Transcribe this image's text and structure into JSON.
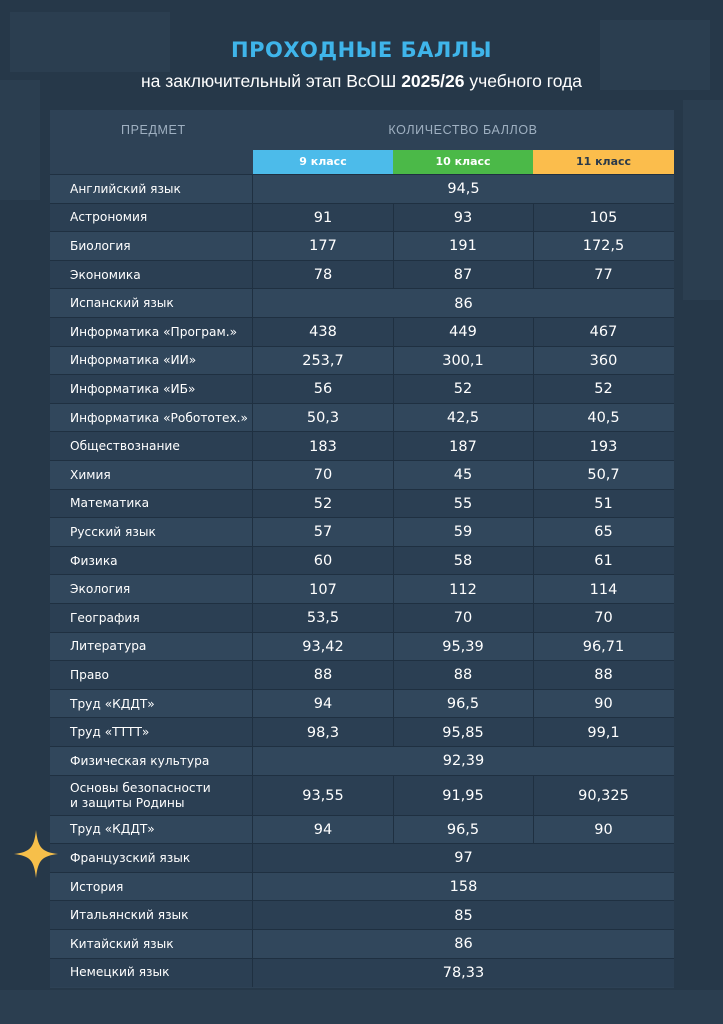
{
  "header": {
    "title": "ПРОХОДНЫЕ БАЛЛЫ",
    "subtitle_pre": "на заключительный этап ВсОШ ",
    "subtitle_bold": "2025/26",
    "subtitle_post": " учебного года"
  },
  "colors": {
    "background": "#263849",
    "title": "#3fb5ea",
    "grade_9": "#4cbbea",
    "grade_10": "#4bb948",
    "grade_11": "#fbbd4c",
    "star": "#f6bf4a"
  },
  "table": {
    "subject_header": "ПРЕДМЕТ",
    "score_header": "КОЛИЧЕСТВО БАЛЛОВ",
    "grades": [
      "9 класс",
      "10 класс",
      "11 класс"
    ],
    "rows": [
      {
        "subject": "Английский язык",
        "all": "94,5"
      },
      {
        "subject": "Астрономия",
        "scores": [
          "91",
          "93",
          "105"
        ]
      },
      {
        "subject": "Биология",
        "scores": [
          "177",
          "191",
          "172,5"
        ]
      },
      {
        "subject": "Экономика",
        "scores": [
          "78",
          "87",
          "77"
        ]
      },
      {
        "subject": "Испанский язык",
        "all": "86"
      },
      {
        "subject": "Информатика  «Програм.»",
        "scores": [
          "438",
          "449",
          "467"
        ]
      },
      {
        "subject": "Информатика «ИИ»",
        "scores": [
          "253,7",
          "300,1",
          "360"
        ]
      },
      {
        "subject": "Информатика «ИБ»",
        "scores": [
          "56",
          "52",
          "52"
        ]
      },
      {
        "subject": "Информатика «Робототех.»",
        "scores": [
          "50,3",
          "42,5",
          "40,5"
        ]
      },
      {
        "subject": "Обществознание",
        "scores": [
          "183",
          "187",
          "193"
        ]
      },
      {
        "subject": "Химия",
        "scores": [
          "70",
          "45",
          "50,7"
        ]
      },
      {
        "subject": "Математика",
        "scores": [
          "52",
          "55",
          "51"
        ]
      },
      {
        "subject": "Русский язык",
        "scores": [
          "57",
          "59",
          "65"
        ]
      },
      {
        "subject": "Физика",
        "scores": [
          "60",
          "58",
          "61"
        ]
      },
      {
        "subject": "Экология",
        "scores": [
          "107",
          "112",
          "114"
        ]
      },
      {
        "subject": "География",
        "scores": [
          "53,5",
          "70",
          "70"
        ]
      },
      {
        "subject": "Литература",
        "scores": [
          "93,42",
          "95,39",
          "96,71"
        ]
      },
      {
        "subject": "Право",
        "scores": [
          "88",
          "88",
          "88"
        ]
      },
      {
        "subject": "Труд «КДДТ»",
        "scores": [
          "94",
          "96,5",
          "90"
        ]
      },
      {
        "subject": "Труд «ТТТТ»",
        "scores": [
          "98,3",
          "95,85",
          "99,1"
        ]
      },
      {
        "subject": "Физическая культура",
        "all": "92,39"
      },
      {
        "subject": "Основы безопасности\nи защиты Родины",
        "scores": [
          "93,55",
          "91,95",
          "90,325"
        ]
      },
      {
        "subject": "Труд «КДДТ»",
        "scores": [
          "94",
          "96,5",
          "90"
        ]
      },
      {
        "subject": "Французский язык",
        "all": "97"
      },
      {
        "subject": "История",
        "all": "158"
      },
      {
        "subject": "Итальянский язык",
        "all": "85"
      },
      {
        "subject": "Китайский язык",
        "all": "86"
      },
      {
        "subject": "Немецкий язык",
        "all": "78,33"
      }
    ]
  },
  "decor": {
    "star_icon": "four-point-star-icon"
  }
}
